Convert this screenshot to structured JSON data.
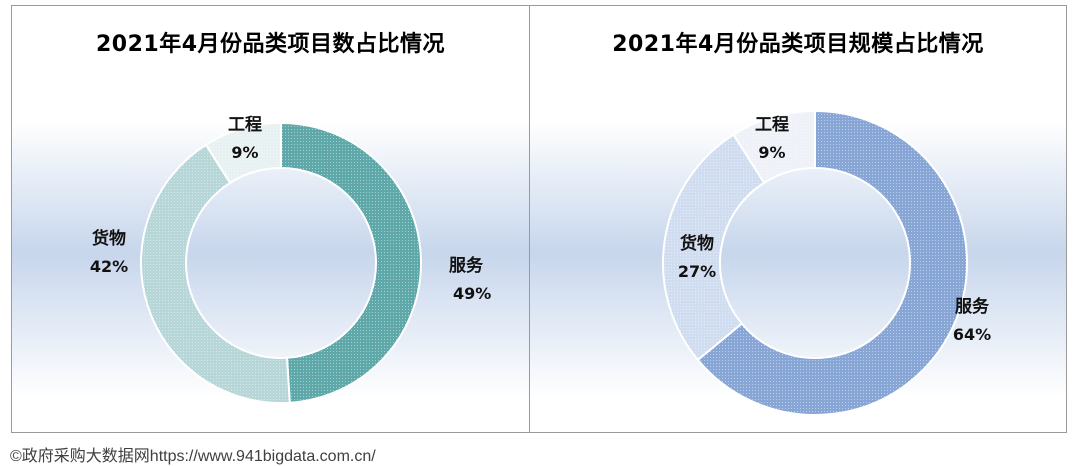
{
  "chart_data": [
    {
      "type": "pie",
      "style": "donut",
      "title": "2021年4月份品类项目数占比情况",
      "slices": [
        {
          "label": "服务",
          "value": 49,
          "pct_label": "49%",
          "color": "#5fa8aa"
        },
        {
          "label": "货物",
          "value": 42,
          "pct_label": "42%",
          "color": "#b6d6d8"
        },
        {
          "label": "工程",
          "value": 9,
          "pct_label": "9%",
          "color": "#e8f1f1"
        }
      ]
    },
    {
      "type": "pie",
      "style": "donut",
      "title": "2021年4月份品类项目规模占比情况",
      "slices": [
        {
          "label": "服务",
          "value": 64,
          "pct_label": "64%",
          "color": "#87a6d6"
        },
        {
          "label": "货物",
          "value": 27,
          "pct_label": "27%",
          "color": "#d0dcef"
        },
        {
          "label": "工程",
          "value": 9,
          "pct_label": "9%",
          "color": "#eef2f8"
        }
      ]
    }
  ],
  "footer": {
    "text": "©政府采购大数据网https://www.941bigdata.com.cn/"
  }
}
